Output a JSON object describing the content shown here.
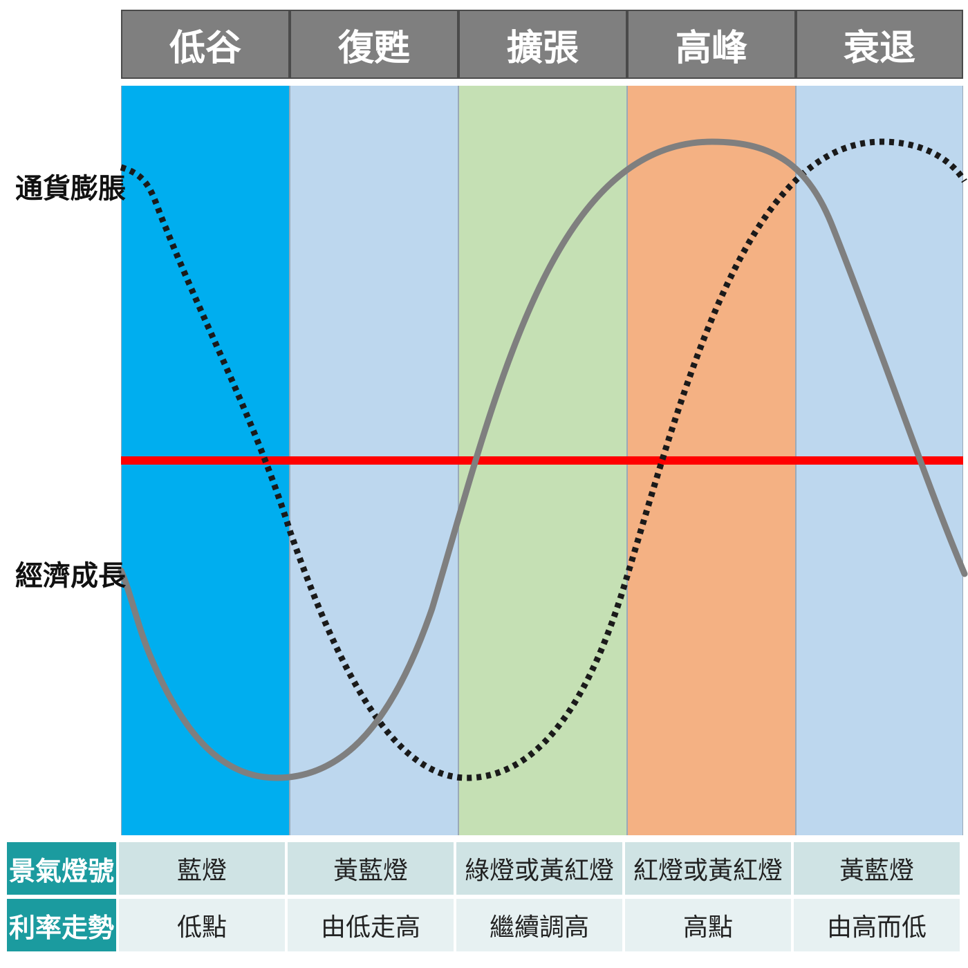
{
  "colors": {
    "header_bg": "#7f7f7f",
    "band_trough": "#00aeef",
    "band_recovery": "#bdd7ee",
    "band_expansion": "#c5e0b4",
    "band_peak": "#f4b183",
    "band_recession": "#bdd7ee",
    "growth_line": "#7f7f7f",
    "inflation_line": "#1a1a1a",
    "baseline": "#ff0000",
    "table_head": "#1b9b9f"
  },
  "phases": [
    {
      "label": "低谷",
      "color": "#00aeef"
    },
    {
      "label": "復甦",
      "color": "#bdd7ee"
    },
    {
      "label": "擴張",
      "color": "#c5e0b4"
    },
    {
      "label": "高峰",
      "color": "#f4b183"
    },
    {
      "label": "衰退",
      "color": "#bdd7ee"
    }
  ],
  "labels": {
    "inflation": "通貨膨脹",
    "growth": "經濟成長"
  },
  "table": {
    "rows": [
      {
        "header": "景氣燈號",
        "cells": [
          "藍燈",
          "黃藍燈",
          "綠燈或黃紅燈",
          "紅燈或黃紅燈",
          "黃藍燈"
        ]
      },
      {
        "header": "利率走勢",
        "cells": [
          "低點",
          "由低走高",
          "繼續調高",
          "高點",
          "由高而低"
        ]
      }
    ]
  }
}
